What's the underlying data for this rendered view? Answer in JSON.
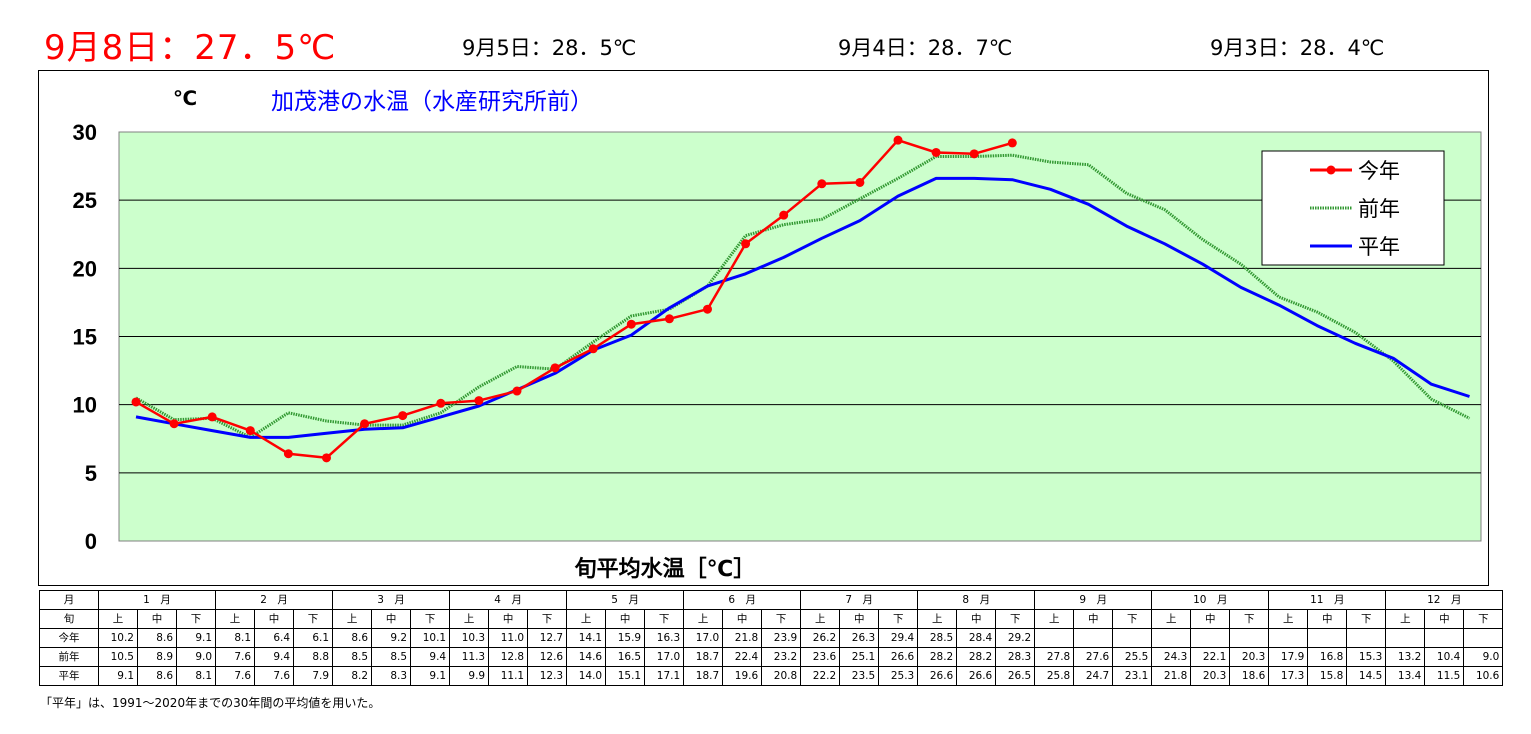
{
  "header": {
    "today": "9月8日：27．5℃",
    "day1": "9月5日：28．5℃",
    "day2": "9月4日：28．7℃",
    "day3": "9月3日：28．4℃"
  },
  "chart_data": {
    "type": "line",
    "title": "加茂港の水温（水産研究所前）",
    "ylabel": "℃",
    "xlabel": "旬平均水温［℃］",
    "ylim": [
      0,
      30
    ],
    "yticks": [
      0,
      5,
      10,
      15,
      20,
      25,
      30
    ],
    "grid": true,
    "background": "#ccffcc",
    "legend_position": "top-right",
    "x_count": 36,
    "series": [
      {
        "name": "今年",
        "color": "#ff0000",
        "style": "line-markers",
        "values": [
          10.2,
          8.6,
          9.1,
          8.1,
          6.4,
          6.1,
          8.6,
          9.2,
          10.1,
          10.3,
          11.0,
          12.7,
          14.1,
          15.9,
          16.3,
          17.0,
          21.8,
          23.9,
          26.2,
          26.3,
          29.4,
          28.5,
          28.4,
          29.2
        ]
      },
      {
        "name": "前年",
        "color": "#339933",
        "style": "dotted",
        "values": [
          10.5,
          8.9,
          9.0,
          7.6,
          9.4,
          8.8,
          8.5,
          8.5,
          9.4,
          11.3,
          12.8,
          12.6,
          14.6,
          16.5,
          17.0,
          18.7,
          22.4,
          23.2,
          23.6,
          25.1,
          26.6,
          28.2,
          28.2,
          28.3,
          27.8,
          27.6,
          25.5,
          24.3,
          22.1,
          20.3,
          17.9,
          16.8,
          15.3,
          13.2,
          10.4,
          9.0
        ]
      },
      {
        "name": "平年",
        "color": "#0000ff",
        "style": "line",
        "values": [
          9.1,
          8.6,
          8.1,
          7.6,
          7.6,
          7.9,
          8.2,
          8.3,
          9.1,
          9.9,
          11.1,
          12.3,
          14.0,
          15.1,
          17.1,
          18.7,
          19.6,
          20.8,
          22.2,
          23.5,
          25.3,
          26.6,
          26.6,
          26.5,
          25.8,
          24.7,
          23.1,
          21.8,
          20.3,
          18.6,
          17.3,
          15.8,
          14.5,
          13.4,
          11.5,
          10.6
        ]
      }
    ]
  },
  "table": {
    "month_header": "月",
    "jun_header": "旬",
    "months": [
      "1　月",
      "2　月",
      "3　月",
      "4　月",
      "5　月",
      "6　月",
      "7　月",
      "8　月",
      "9　月",
      "10　月",
      "11　月",
      "12　月"
    ],
    "jun_labels": [
      "上",
      "中",
      "下"
    ],
    "rows": [
      {
        "label": "今年",
        "values": [
          "10.2",
          "8.6",
          "9.1",
          "8.1",
          "6.4",
          "6.1",
          "8.6",
          "9.2",
          "10.1",
          "10.3",
          "11.0",
          "12.7",
          "14.1",
          "15.9",
          "16.3",
          "17.0",
          "21.8",
          "23.9",
          "26.2",
          "26.3",
          "29.4",
          "28.5",
          "28.4",
          "29.2",
          "",
          "",
          "",
          "",
          "",
          "",
          "",
          "",
          "",
          "",
          "",
          ""
        ]
      },
      {
        "label": "前年",
        "values": [
          "10.5",
          "8.9",
          "9.0",
          "7.6",
          "9.4",
          "8.8",
          "8.5",
          "8.5",
          "9.4",
          "11.3",
          "12.8",
          "12.6",
          "14.6",
          "16.5",
          "17.0",
          "18.7",
          "22.4",
          "23.2",
          "23.6",
          "25.1",
          "26.6",
          "28.2",
          "28.2",
          "28.3",
          "27.8",
          "27.6",
          "25.5",
          "24.3",
          "22.1",
          "20.3",
          "17.9",
          "16.8",
          "15.3",
          "13.2",
          "10.4",
          "9.0"
        ]
      },
      {
        "label": "平年",
        "values": [
          "9.1",
          "8.6",
          "8.1",
          "7.6",
          "7.6",
          "7.9",
          "8.2",
          "8.3",
          "9.1",
          "9.9",
          "11.1",
          "12.3",
          "14.0",
          "15.1",
          "17.1",
          "18.7",
          "19.6",
          "20.8",
          "22.2",
          "23.5",
          "25.3",
          "26.6",
          "26.6",
          "26.5",
          "25.8",
          "24.7",
          "23.1",
          "21.8",
          "20.3",
          "18.6",
          "17.3",
          "15.8",
          "14.5",
          "13.4",
          "11.5",
          "10.6"
        ]
      }
    ]
  },
  "note": "「平年」は、1991～2020年までの30年間の平均値を用いた。"
}
